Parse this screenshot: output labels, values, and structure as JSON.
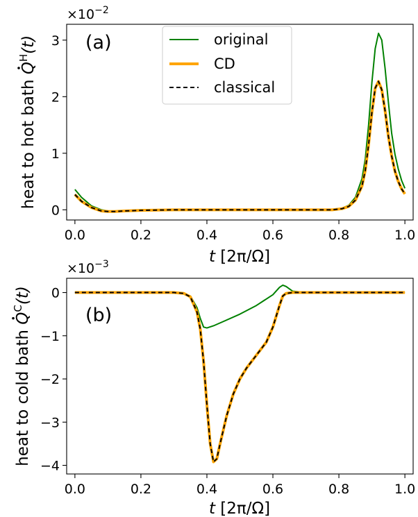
{
  "chart_data": [
    {
      "type": "line",
      "panel_label": "(a)",
      "ylabel_main": "heat to hot bath ",
      "ylabel_symbol": "Q",
      "ylabel_super": "H",
      "ylabel_arg": "(t)",
      "xlabel_var": "t",
      "xlabel_unit": " [2π/Ω]",
      "y_multiplier_base": "×10",
      "y_multiplier_exp": "−2",
      "xlim": [
        -0.025,
        1.025
      ],
      "ylim": [
        -0.18,
        3.28
      ],
      "xticks": [
        0.0,
        0.2,
        0.4,
        0.6,
        0.8,
        1.0
      ],
      "xtick_labels": [
        "0.0",
        "0.2",
        "0.4",
        "0.6",
        "0.8",
        "1.0"
      ],
      "yticks": [
        0,
        1,
        2,
        3
      ],
      "ytick_labels": [
        "0",
        "1",
        "2",
        "3"
      ],
      "legend": {
        "position": "top-center",
        "entries": [
          "original",
          "CD",
          "classical"
        ]
      },
      "series": [
        {
          "name": "original",
          "color": "#008000",
          "style": "solid",
          "x": [
            0,
            0.02,
            0.05,
            0.08,
            0.1,
            0.12,
            0.15,
            0.2,
            0.3,
            0.4,
            0.5,
            0.6,
            0.7,
            0.78,
            0.81,
            0.83,
            0.85,
            0.87,
            0.88,
            0.89,
            0.9,
            0.91,
            0.92,
            0.93,
            0.94,
            0.95,
            0.96,
            0.97,
            0.98,
            0.99,
            1.0
          ],
          "values": [
            0.36,
            0.22,
            0.07,
            0.0,
            -0.02,
            -0.02,
            -0.02,
            0.0,
            0.0,
            0.0,
            0.0,
            0.0,
            0.0,
            0.0,
            0.03,
            0.08,
            0.22,
            0.55,
            0.9,
            1.5,
            2.25,
            2.85,
            3.12,
            3.0,
            2.5,
            1.9,
            1.35,
            0.98,
            0.72,
            0.52,
            0.38
          ]
        },
        {
          "name": "CD",
          "color": "#ffa500",
          "style": "solid-thick",
          "x": [
            0,
            0.02,
            0.05,
            0.08,
            0.1,
            0.12,
            0.15,
            0.2,
            0.3,
            0.4,
            0.5,
            0.6,
            0.7,
            0.78,
            0.81,
            0.83,
            0.85,
            0.87,
            0.88,
            0.89,
            0.9,
            0.91,
            0.92,
            0.93,
            0.94,
            0.95,
            0.96,
            0.97,
            0.98,
            0.99,
            1.0
          ],
          "values": [
            0.27,
            0.15,
            0.04,
            -0.02,
            -0.03,
            -0.03,
            -0.02,
            -0.01,
            0.0,
            0.0,
            0.0,
            0.0,
            0.0,
            0.0,
            0.02,
            0.06,
            0.17,
            0.42,
            0.7,
            1.15,
            1.72,
            2.15,
            2.27,
            2.12,
            1.75,
            1.3,
            0.95,
            0.68,
            0.5,
            0.37,
            0.28
          ]
        },
        {
          "name": "classical",
          "color": "#000000",
          "style": "dashed",
          "x": [
            0,
            0.02,
            0.05,
            0.08,
            0.1,
            0.12,
            0.15,
            0.2,
            0.3,
            0.4,
            0.5,
            0.6,
            0.7,
            0.78,
            0.81,
            0.83,
            0.85,
            0.87,
            0.88,
            0.89,
            0.9,
            0.91,
            0.92,
            0.93,
            0.94,
            0.95,
            0.96,
            0.97,
            0.98,
            0.99,
            1.0
          ],
          "values": [
            0.27,
            0.15,
            0.04,
            -0.02,
            -0.03,
            -0.03,
            -0.02,
            -0.01,
            0.0,
            0.0,
            0.0,
            0.0,
            0.0,
            0.0,
            0.02,
            0.06,
            0.17,
            0.42,
            0.7,
            1.15,
            1.72,
            2.15,
            2.27,
            2.12,
            1.75,
            1.3,
            0.95,
            0.68,
            0.5,
            0.37,
            0.28
          ]
        }
      ]
    },
    {
      "type": "line",
      "panel_label": "(b)",
      "ylabel_main": "heat to cold bath ",
      "ylabel_symbol": "Q",
      "ylabel_super": "C",
      "ylabel_arg": "(t)",
      "xlabel_var": "t",
      "xlabel_unit": " [2π/Ω]",
      "y_multiplier_base": "×10",
      "y_multiplier_exp": "−3",
      "xlim": [
        -0.025,
        1.025
      ],
      "ylim": [
        -4.2,
        0.33
      ],
      "xticks": [
        0.0,
        0.2,
        0.4,
        0.6,
        0.8,
        1.0
      ],
      "xtick_labels": [
        "0.0",
        "0.2",
        "0.4",
        "0.6",
        "0.8",
        "1.0"
      ],
      "yticks": [
        -4,
        -3,
        -2,
        -1,
        0
      ],
      "ytick_labels": [
        "−4",
        "−3",
        "−2",
        "−1",
        "0"
      ],
      "series": [
        {
          "name": "original",
          "color": "#008000",
          "style": "solid",
          "x": [
            0,
            0.1,
            0.2,
            0.3,
            0.33,
            0.35,
            0.37,
            0.38,
            0.39,
            0.4,
            0.42,
            0.45,
            0.5,
            0.55,
            0.6,
            0.62,
            0.63,
            0.64,
            0.66,
            0.7,
            0.8,
            0.9,
            1.0
          ],
          "values": [
            0.0,
            0.0,
            0.0,
            0.0,
            -0.02,
            -0.08,
            -0.35,
            -0.6,
            -0.8,
            -0.82,
            -0.77,
            -0.67,
            -0.5,
            -0.3,
            -0.05,
            0.12,
            0.17,
            0.14,
            0.03,
            0.0,
            0.0,
            0.0,
            0.0
          ]
        },
        {
          "name": "CD",
          "color": "#ffa500",
          "style": "solid-thick",
          "x": [
            0,
            0.1,
            0.2,
            0.3,
            0.33,
            0.35,
            0.37,
            0.38,
            0.39,
            0.4,
            0.41,
            0.42,
            0.43,
            0.44,
            0.46,
            0.48,
            0.5,
            0.52,
            0.55,
            0.58,
            0.6,
            0.62,
            0.63,
            0.64,
            0.66,
            0.7,
            0.8,
            0.9,
            1.0
          ],
          "values": [
            0.0,
            0.0,
            0.0,
            0.0,
            -0.02,
            -0.1,
            -0.45,
            -0.85,
            -1.6,
            -2.6,
            -3.5,
            -3.92,
            -3.85,
            -3.5,
            -2.85,
            -2.35,
            -2.0,
            -1.75,
            -1.45,
            -1.15,
            -0.8,
            -0.3,
            -0.08,
            -0.02,
            0.0,
            0.0,
            0.0,
            0.0,
            0.0
          ]
        },
        {
          "name": "classical",
          "color": "#000000",
          "style": "dashed",
          "x": [
            0,
            0.1,
            0.2,
            0.3,
            0.33,
            0.35,
            0.37,
            0.38,
            0.39,
            0.4,
            0.41,
            0.42,
            0.43,
            0.44,
            0.46,
            0.48,
            0.5,
            0.52,
            0.55,
            0.58,
            0.6,
            0.62,
            0.63,
            0.64,
            0.66,
            0.7,
            0.8,
            0.9,
            1.0
          ],
          "values": [
            0.0,
            0.0,
            0.0,
            0.0,
            -0.02,
            -0.1,
            -0.45,
            -0.85,
            -1.6,
            -2.6,
            -3.5,
            -3.92,
            -3.85,
            -3.5,
            -2.85,
            -2.35,
            -2.0,
            -1.75,
            -1.45,
            -1.15,
            -0.8,
            -0.3,
            -0.08,
            -0.02,
            0.0,
            0.0,
            0.0,
            0.0,
            0.0
          ]
        }
      ]
    }
  ]
}
